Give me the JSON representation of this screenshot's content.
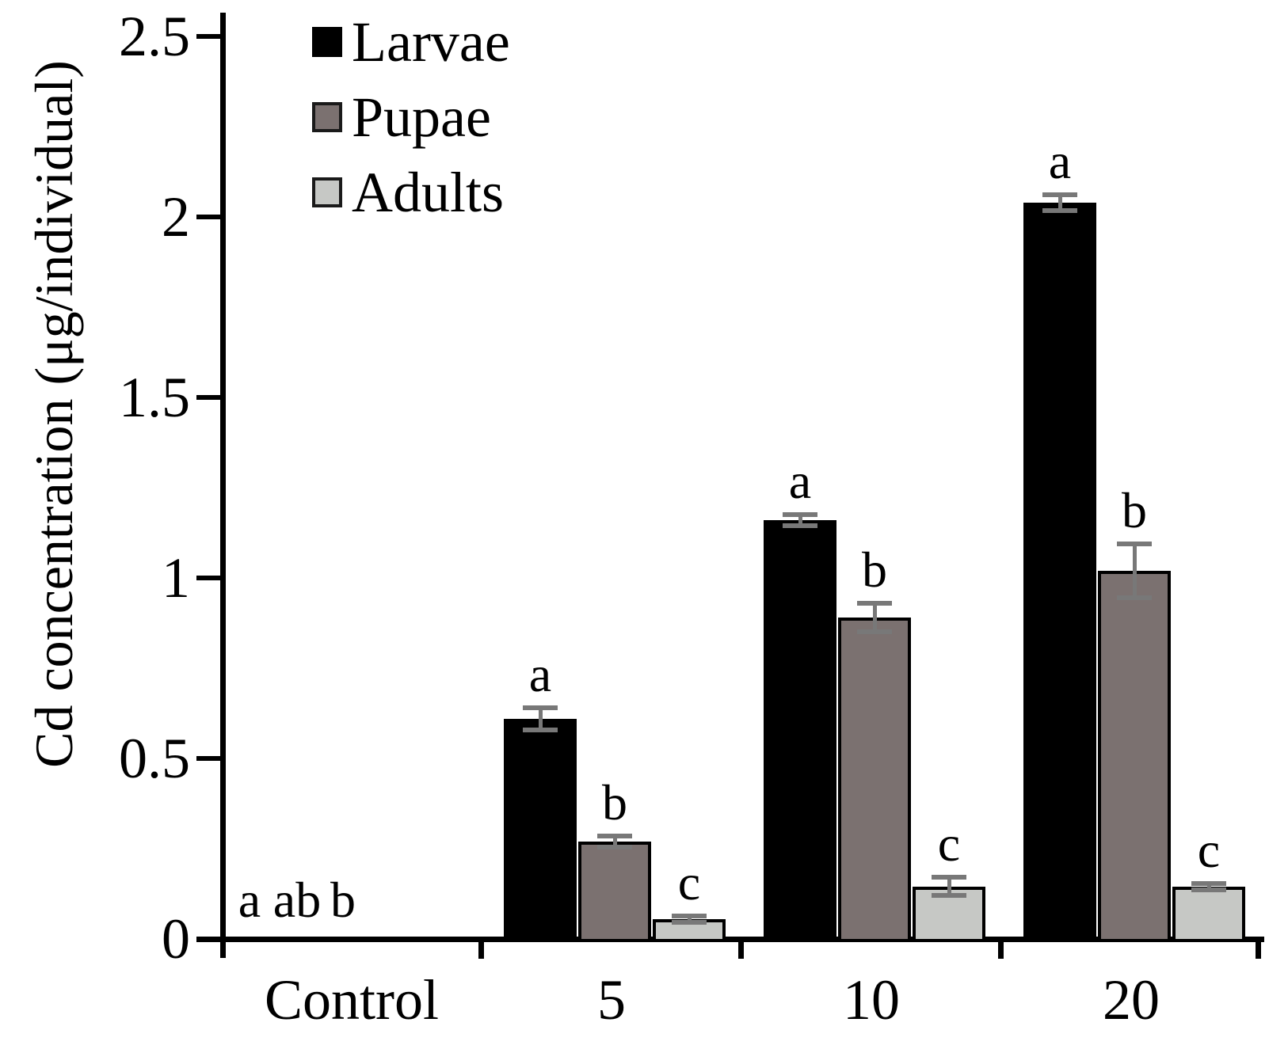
{
  "chart_data": {
    "type": "bar",
    "title": "",
    "xlabel": "",
    "ylabel": "Cd concentration (μg/individual)",
    "ylim": [
      0,
      2.5
    ],
    "yticks": [
      0,
      0.5,
      1,
      1.5,
      2,
      2.5
    ],
    "ytick_labels": [
      "0",
      "0.5",
      "1",
      "1.5",
      "2",
      "2.5"
    ],
    "categories": [
      "Control",
      "5",
      "10",
      "20"
    ],
    "grid": false,
    "legend_position": "top-left-inside",
    "axis_color": "#000000",
    "error_bar_color": "#787878",
    "series": [
      {
        "name": "Larvae",
        "color": "#000000",
        "border_color": "#000000",
        "values": [
          0,
          0.61,
          1.16,
          2.04
        ],
        "errors": [
          0,
          0.03,
          0.015,
          0.022
        ],
        "letters": [
          "a",
          "a",
          "a",
          "a"
        ]
      },
      {
        "name": "Pupae",
        "color": "#7b7170",
        "border_color": "#000000",
        "values": [
          0,
          0.27,
          0.89,
          1.02
        ],
        "errors": [
          0,
          0.015,
          0.04,
          0.075
        ],
        "letters": [
          "ab",
          "b",
          "b",
          "b"
        ]
      },
      {
        "name": "Adults",
        "color": "#c6c8c5",
        "border_color": "#000000",
        "values": [
          0,
          0.055,
          0.145,
          0.145
        ],
        "errors": [
          0,
          0.008,
          0.025,
          0.008
        ],
        "letters": [
          "b",
          "c",
          "c",
          "c"
        ]
      }
    ]
  }
}
